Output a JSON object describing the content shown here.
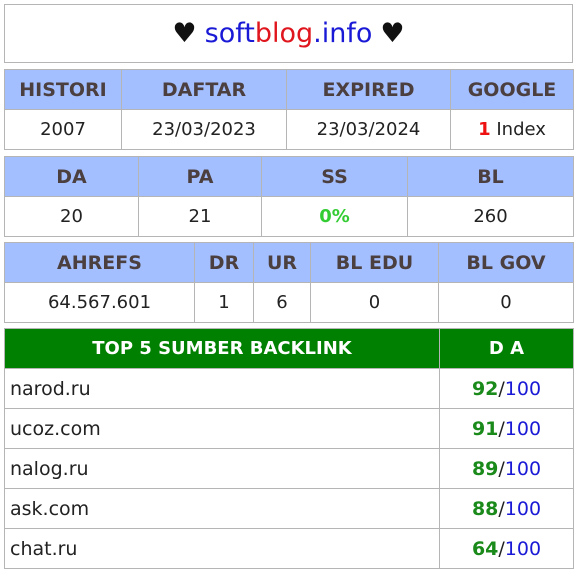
{
  "title": {
    "heart_left": "♥",
    "part1": "soft",
    "part2": "blog",
    "part3": ".info",
    "heart_right": "♥"
  },
  "table1": {
    "headers": [
      "HISTORI",
      "DAFTAR",
      "EXPIRED",
      "GOOGLE"
    ],
    "values": {
      "histori": "2007",
      "daftar": "23/03/2023",
      "expired": "23/03/2024",
      "google_count": "1",
      "google_label": " Index"
    }
  },
  "table2": {
    "headers": [
      "DA",
      "PA",
      "SS",
      "BL"
    ],
    "values": [
      "20",
      "21",
      "0%",
      "260"
    ]
  },
  "table3": {
    "headers": [
      "AHREFS",
      "DR",
      "UR",
      "BL EDU",
      "BL GOV"
    ],
    "values": [
      "64.567.601",
      "1",
      "6",
      "0",
      "0"
    ]
  },
  "backlinks": {
    "headers": [
      "TOP 5 SUMBER BACKLINK",
      "D A"
    ],
    "rows": [
      {
        "site": "narod.ru",
        "da": "92",
        "max": "100"
      },
      {
        "site": "ucoz.com",
        "da": "91",
        "max": "100"
      },
      {
        "site": "nalog.ru",
        "da": "89",
        "max": "100"
      },
      {
        "site": "ask.com",
        "da": "88",
        "max": "100"
      },
      {
        "site": "chat.ru",
        "da": "64",
        "max": "100"
      }
    ]
  },
  "colors": {
    "header_bg": "#a4bfff",
    "backlink_header_bg": "#008000",
    "red": "#e11111",
    "green": "#33cc33",
    "blue": "#1a1ad6"
  }
}
